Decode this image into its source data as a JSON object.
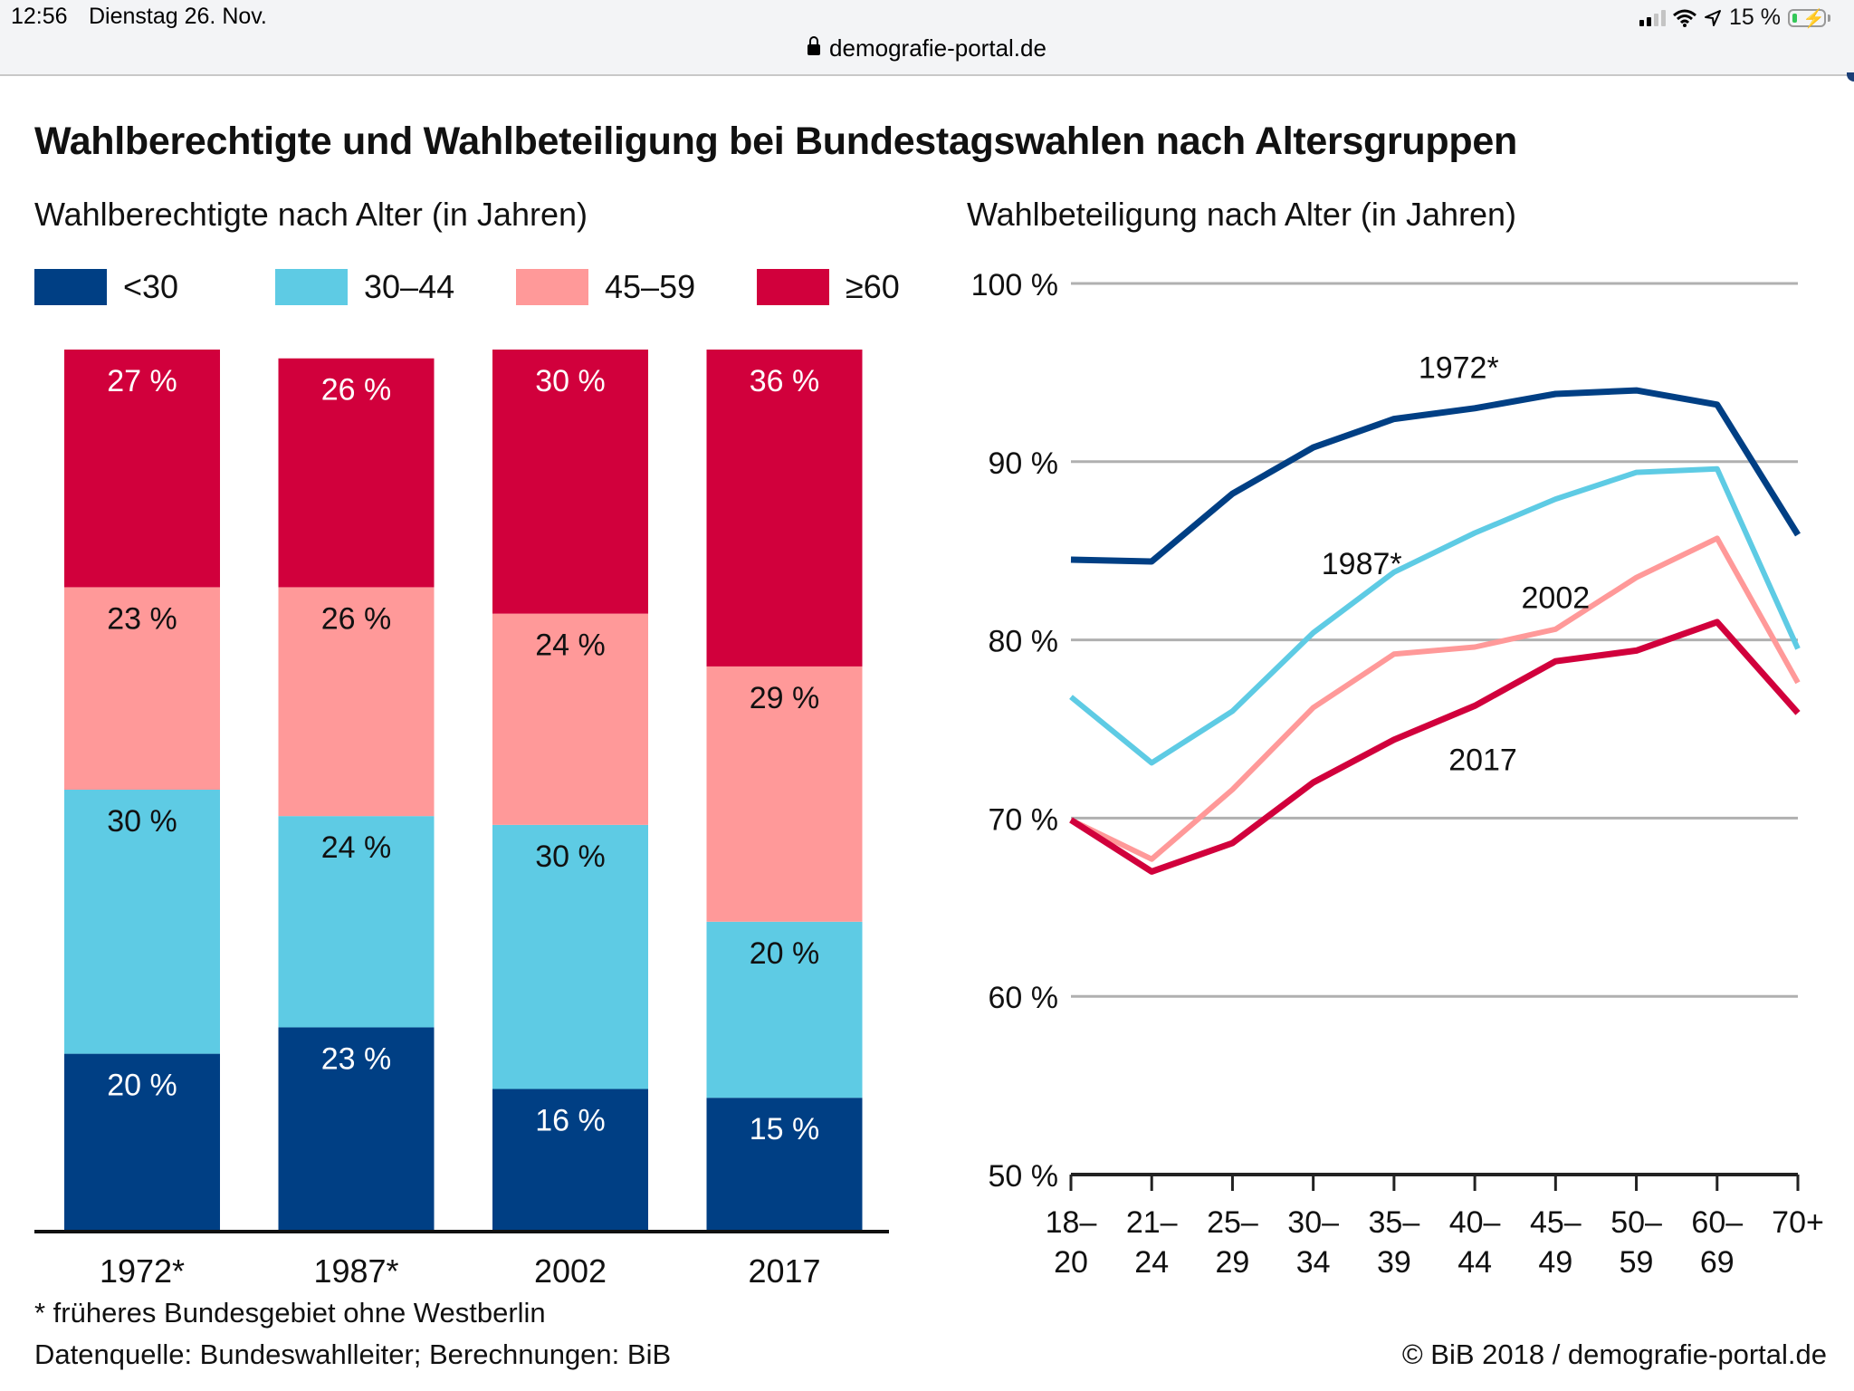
{
  "status_bar": {
    "time": "12:56",
    "date": "Dienstag 26. Nov.",
    "battery": "15 %",
    "battery_level": 0.15,
    "icons": [
      "signal-icon",
      "wifi-icon",
      "location-icon",
      "battery-charging-icon"
    ]
  },
  "browser": {
    "url": "demografie-portal.de",
    "lock_icon": "lock-icon"
  },
  "figure": {
    "title": "Wahlberechtigte und Wahlbeteiligung bei Bundestagswahlen nach Altersgruppen",
    "footnote": "* früheres Bundesgebiet ohne Westberlin",
    "source": "Datenquelle: Bundeswahlleiter; Berechnungen: BiB",
    "copyright": "© BiB 2018 / demografie-portal.de"
  },
  "chart_data": [
    {
      "type": "bar",
      "stacked": true,
      "title": "Wahlberechtigte nach Alter (in Jahren)",
      "xlabel": "",
      "ylabel": "",
      "ylim": [
        0,
        100
      ],
      "grid": false,
      "legend_position": "top",
      "categories": [
        "1972*",
        "1987*",
        "2002",
        "2017"
      ],
      "series": [
        {
          "name": "<30",
          "color": "#003f84",
          "label_color": "#ffffff",
          "values": [
            20,
            23,
            16,
            15
          ]
        },
        {
          "name": "30–44",
          "color": "#5ecbe4",
          "label_color": "#111111",
          "values": [
            30,
            24,
            30,
            20
          ]
        },
        {
          "name": "45–59",
          "color": "#ff9999",
          "label_color": "#111111",
          "values": [
            23,
            26,
            24,
            29
          ]
        },
        {
          "name": "≥60",
          "color": "#d1003c",
          "label_color": "#ffffff",
          "values": [
            27,
            26,
            30,
            36
          ]
        }
      ],
      "value_suffix": " %"
    },
    {
      "type": "line",
      "title": "Wahlbeteiligung nach Alter (in Jahren)",
      "xlabel": "",
      "ylabel": "",
      "ylim": [
        50,
        100
      ],
      "yticks": [
        50,
        60,
        70,
        80,
        90,
        100
      ],
      "ytick_labels": [
        "50 %",
        "60 %",
        "70 %",
        "80 %",
        "90 %",
        "100 %"
      ],
      "grid": true,
      "x": [
        [
          "18–",
          "20"
        ],
        [
          "21–",
          "24"
        ],
        [
          "25–",
          "29"
        ],
        [
          "30–",
          "34"
        ],
        [
          "35–",
          "39"
        ],
        [
          "40–",
          "44"
        ],
        [
          "45–",
          "49"
        ],
        [
          "50–",
          "59"
        ],
        [
          "60–",
          "69"
        ],
        [
          "70+",
          ""
        ]
      ],
      "series": [
        {
          "name": "1972*",
          "color": "#003f84",
          "values": [
            84.5,
            84.4,
            88.2,
            90.8,
            92.4,
            93.0,
            93.8,
            94.0,
            93.2,
            85.9
          ],
          "label_at": 4.8,
          "label_value": 95.3
        },
        {
          "name": "1987*",
          "color": "#5ecbe4",
          "values": [
            76.8,
            73.1,
            76.0,
            80.4,
            83.8,
            86.0,
            87.9,
            89.4,
            89.6,
            79.5
          ],
          "label_at": 3.6,
          "label_value": 84.3
        },
        {
          "name": "2002",
          "color": "#ff9999",
          "values": [
            69.9,
            67.7,
            71.6,
            76.2,
            79.2,
            79.6,
            80.6,
            83.5,
            85.7,
            77.6
          ],
          "label_at": 6.0,
          "label_value": 82.4
        },
        {
          "name": "2017",
          "color": "#d1003c",
          "values": [
            69.9,
            67.0,
            68.6,
            72.0,
            74.4,
            76.3,
            78.8,
            79.4,
            81.0,
            75.9
          ],
          "label_at": 5.1,
          "label_value": 73.3
        }
      ]
    }
  ]
}
